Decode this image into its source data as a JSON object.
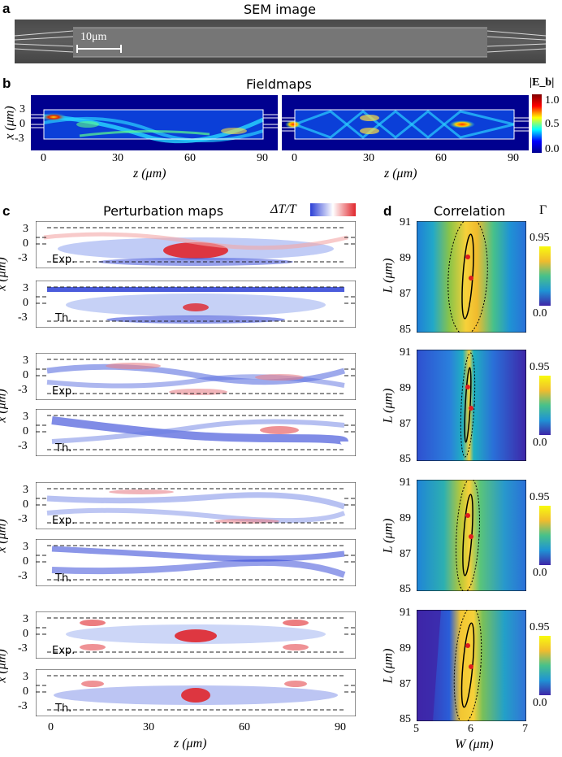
{
  "panels": {
    "a": {
      "letter": "a",
      "title": "SEM image",
      "scalebar": "10μm"
    },
    "b": {
      "letter": "b",
      "title": "Fieldmaps",
      "colorbar": {
        "label": "|E_b|",
        "ticks": [
          "1.0",
          "0.5",
          "0.0"
        ]
      },
      "x_ticks": [
        "0",
        "30",
        "60",
        "90"
      ],
      "y_ticks": [
        "3",
        "0",
        "-3"
      ],
      "xlabel": "z (μm)",
      "ylabel": "x (μm)"
    },
    "c": {
      "letter": "c",
      "title": "Perturbation maps",
      "colorbar_label": "ΔT/T",
      "row_tags": [
        "Exp.",
        "Th."
      ],
      "x_ticks": [
        "0",
        "30",
        "60",
        "90"
      ],
      "y_ticks": [
        "3",
        "0",
        "-3"
      ],
      "xlabel": "z (μm)",
      "ylabel": "x (μm)"
    },
    "d": {
      "letter": "d",
      "title": "Correlation",
      "colorbar_label": "Γ",
      "cb_ticks": [
        "0.95",
        "0.0"
      ],
      "y_ticks": [
        "91",
        "89",
        "87",
        "85"
      ],
      "x_ticks": [
        "5",
        "6",
        "7"
      ],
      "xlabel": "W (μm)",
      "ylabel": "L (μm)"
    }
  },
  "colors": {
    "jet_high": "#b40000",
    "jet_low": "#00008f",
    "pert_red": "#e0262c",
    "pert_blue": "#2b3fd6",
    "parula_yellow": "#f7d13a",
    "parula_blue": "#3e26a8"
  }
}
